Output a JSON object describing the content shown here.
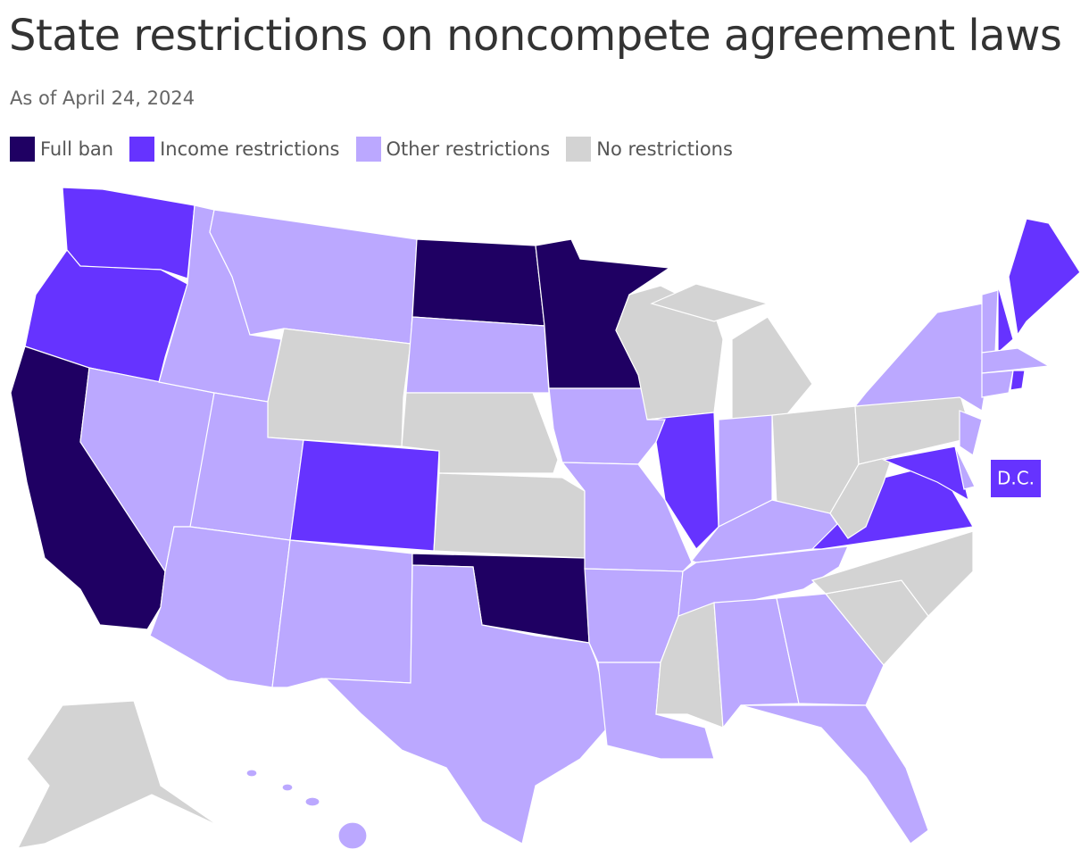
{
  "header": {
    "title": "State restrictions on noncompete agreement laws",
    "subtitle": "As of April 24, 2024"
  },
  "legend": {
    "items": [
      {
        "label": "Full ban",
        "color": "#1f0063"
      },
      {
        "label": "Income restrictions",
        "color": "#6633ff"
      },
      {
        "label": "Other restrictions",
        "color": "#bba8ff"
      },
      {
        "label": "No restrictions",
        "color": "#d3d3d3"
      }
    ]
  },
  "map": {
    "dc_label": "D.C."
  }
}
